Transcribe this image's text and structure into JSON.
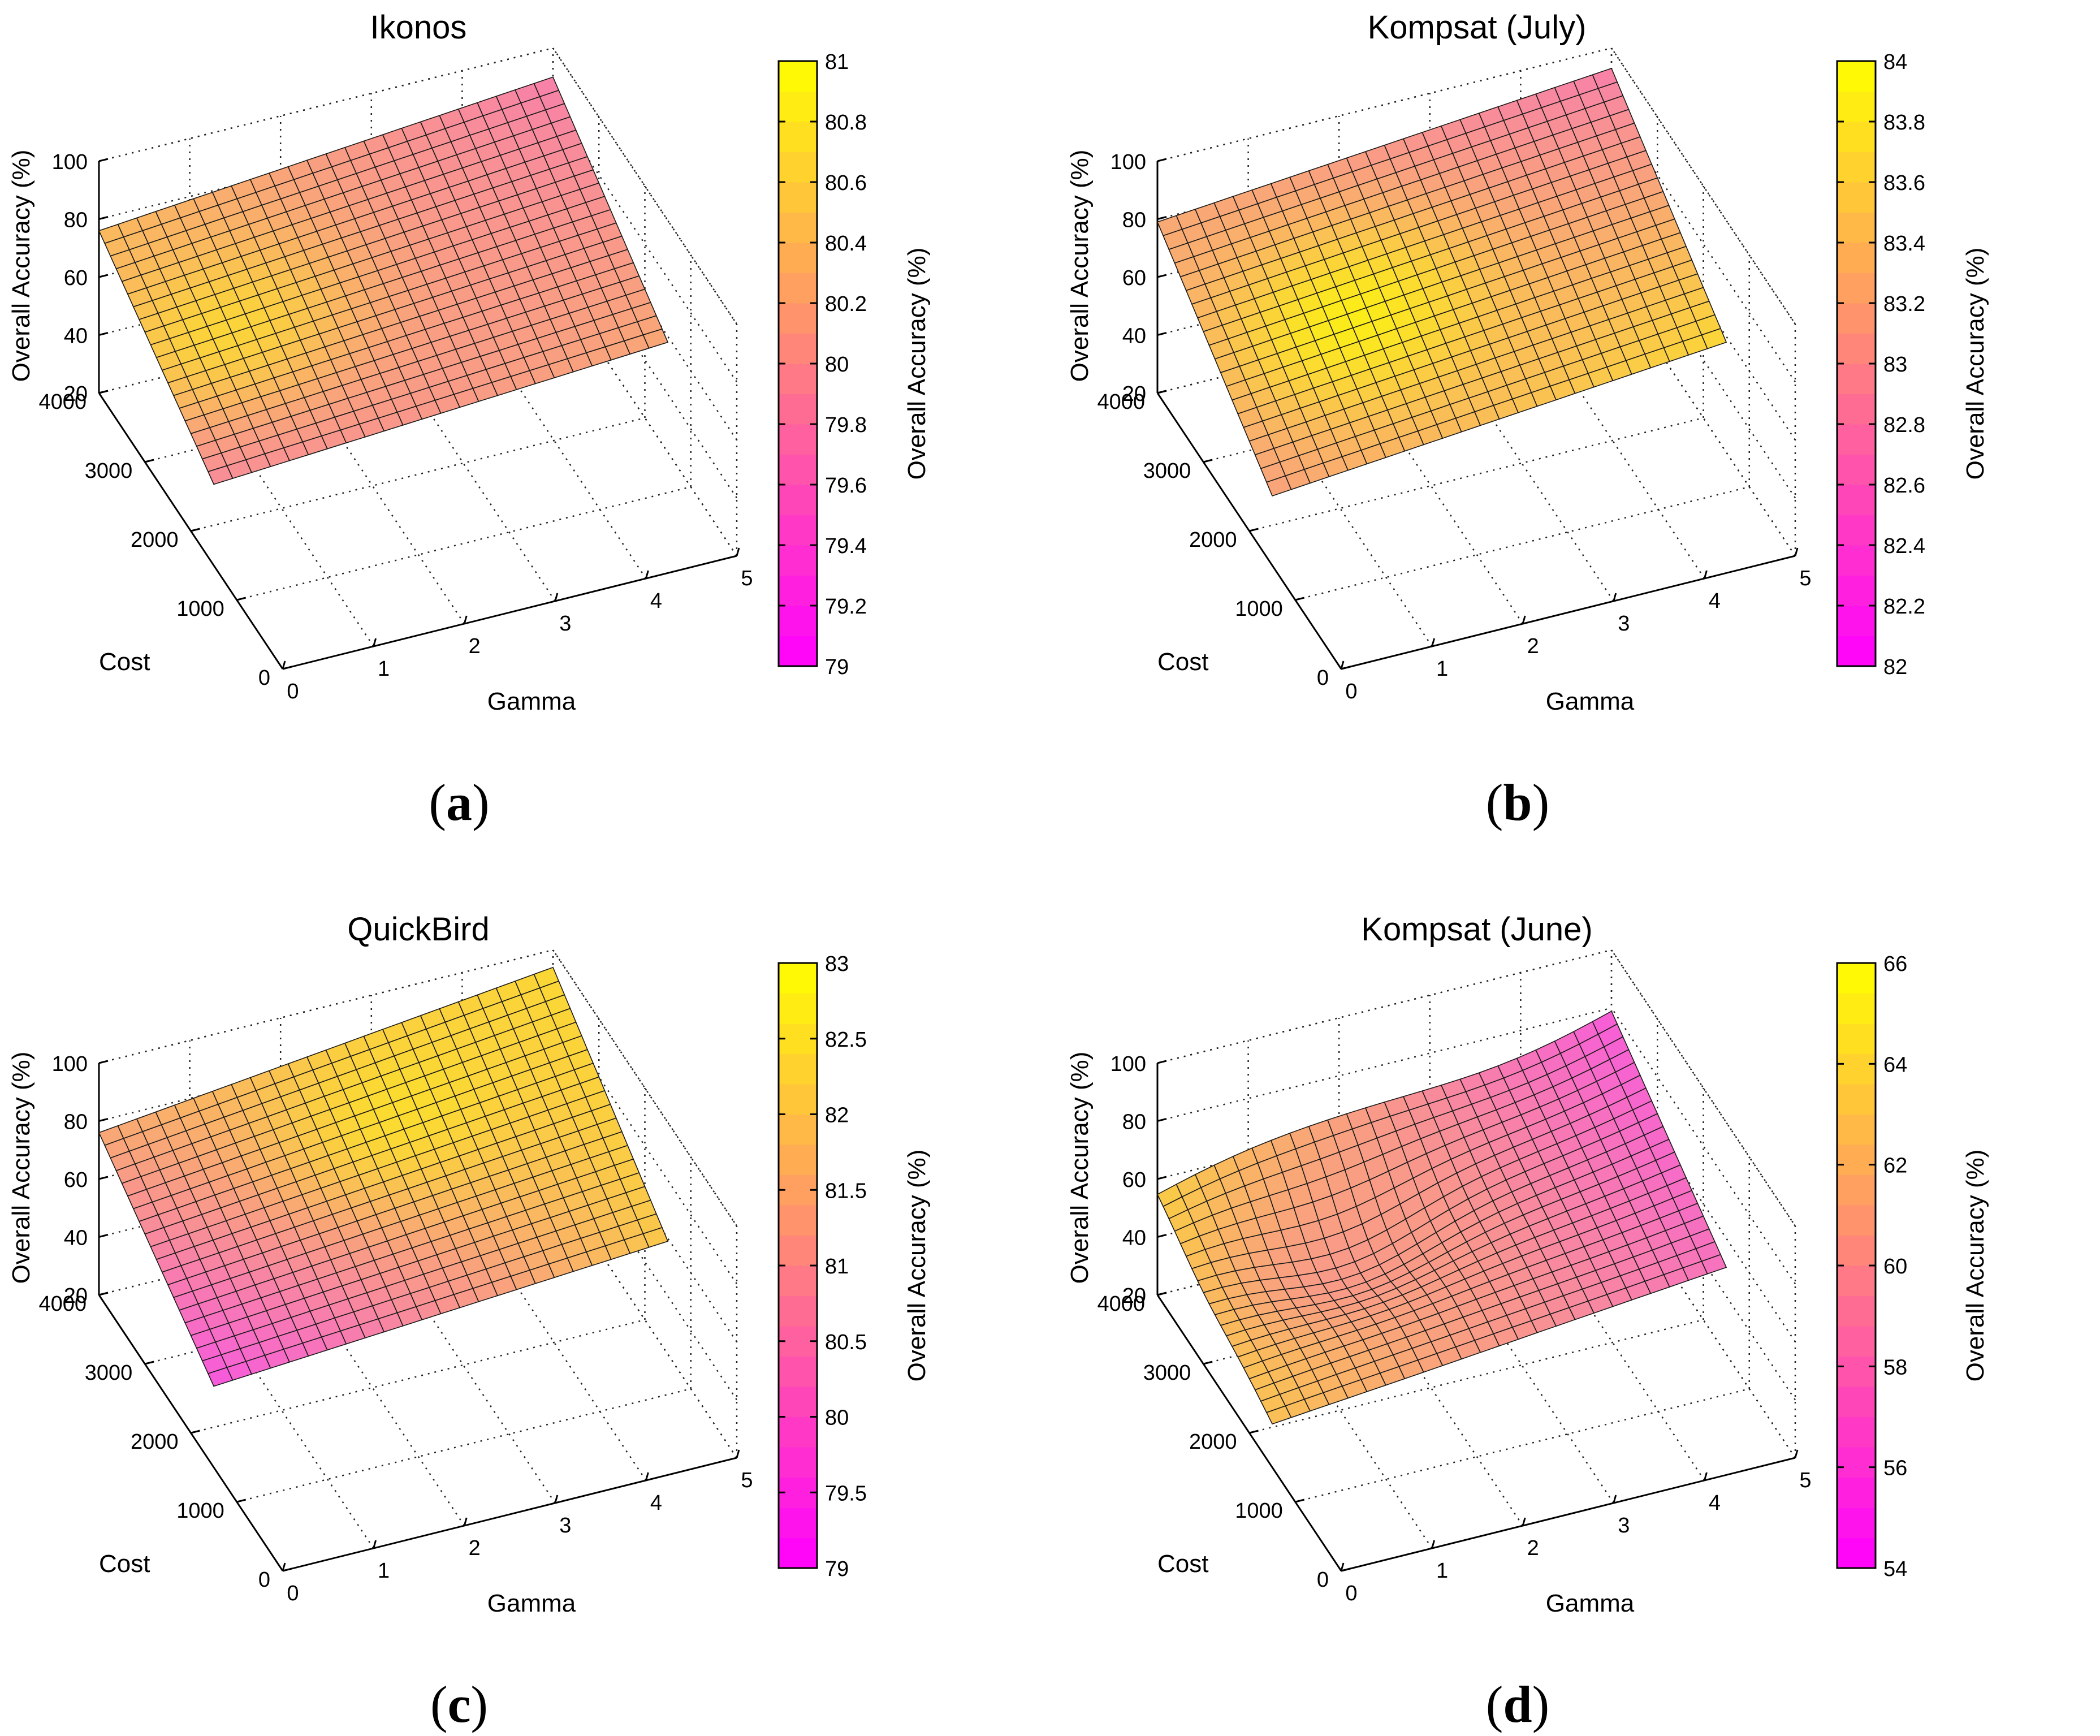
{
  "figure": {
    "panel_letters": [
      "a",
      "b",
      "c",
      "d"
    ]
  },
  "chart_data": [
    {
      "type": "surface3d",
      "title": "Ikonos",
      "panel_label": "a",
      "xlabel": "Gamma",
      "ylabel": "Cost",
      "zlabel": "Overall Accuracy (%)",
      "colorbar_label": "Overall Accuracy (%)",
      "x_ticks": [
        "0",
        "1",
        "2",
        "3",
        "4",
        "5"
      ],
      "y_ticks": [
        "0",
        "1000",
        "2000",
        "3000",
        "4000"
      ],
      "z_ticks": [
        "20",
        "40",
        "60",
        "80",
        "100"
      ],
      "colorbar_ticks": [
        "79",
        "79.2",
        "79.4",
        "79.6",
        "79.8",
        "80",
        "80.2",
        "80.4",
        "80.6",
        "80.8",
        "81"
      ],
      "clim": [
        79,
        81
      ],
      "xlim": [
        0,
        5
      ],
      "ylim": [
        0,
        4000
      ],
      "zlim": [
        20,
        100
      ],
      "surface": {
        "gamma": [
          0,
          5
        ],
        "cost": [
          1500,
          4000
        ],
        "corners": {
          "g0_c4000": 76,
          "g5_c4000": 90,
          "g0_c1500": 48,
          "g5_c1500": 58
        },
        "color": {
          "g0_c4000": 80.3,
          "g5_c4000": 79.6,
          "g0_c1500": 79.7,
          "g5_c1500": 80.1,
          "bump_center": [
            0.8,
            2800
          ],
          "bump_value": 80.65
        }
      }
    },
    {
      "type": "surface3d",
      "title": "Kompsat (July)",
      "panel_label": "b",
      "xlabel": "Gamma",
      "ylabel": "Cost",
      "zlabel": "Overall Accuracy (%)",
      "colorbar_label": "Overall Accuracy (%)",
      "x_ticks": [
        "0",
        "1",
        "2",
        "3",
        "4",
        "5"
      ],
      "y_ticks": [
        "0",
        "1000",
        "2000",
        "3000",
        "4000"
      ],
      "z_ticks": [
        "20",
        "40",
        "60",
        "80",
        "100"
      ],
      "colorbar_ticks": [
        "82",
        "82.2",
        "82.4",
        "82.6",
        "82.8",
        "83",
        "83.2",
        "83.4",
        "83.6",
        "83.8",
        "84"
      ],
      "clim": [
        82,
        84
      ],
      "xlim": [
        0,
        5
      ],
      "ylim": [
        0,
        4000
      ],
      "zlim": [
        20,
        100
      ],
      "surface": {
        "gamma": [
          0,
          5
        ],
        "cost": [
          1500,
          4000
        ],
        "corners": {
          "g0_c4000": 79,
          "g5_c4000": 93,
          "g0_c1500": 44,
          "g5_c1500": 58
        },
        "color": {
          "g0_c4000": 83.1,
          "g5_c4000": 82.6,
          "g0_c1500": 83.0,
          "g5_c1500": 83.7,
          "bump_center": [
            1.5,
            2700
          ],
          "bump_value": 83.95
        }
      }
    },
    {
      "type": "surface3d",
      "title": "QuickBird",
      "panel_label": "c",
      "xlabel": "Gamma",
      "ylabel": "Cost",
      "zlabel": "Overall Accuracy (%)",
      "colorbar_label": "Overall Accuracy (%)",
      "x_ticks": [
        "0",
        "1",
        "2",
        "3",
        "4",
        "5"
      ],
      "y_ticks": [
        "0",
        "1000",
        "2000",
        "3000",
        "4000"
      ],
      "z_ticks": [
        "20",
        "40",
        "60",
        "80",
        "100"
      ],
      "colorbar_ticks": [
        "79",
        "79.5",
        "80",
        "80.5",
        "81",
        "81.5",
        "82",
        "82.5",
        "83"
      ],
      "clim": [
        79,
        83
      ],
      "xlim": [
        0,
        5
      ],
      "ylim": [
        0,
        4000
      ],
      "zlim": [
        20,
        100
      ],
      "surface": {
        "gamma": [
          0,
          5
        ],
        "cost": [
          1500,
          4000
        ],
        "corners": {
          "g0_c4000": 76,
          "g5_c4000": 94,
          "g0_c1500": 48,
          "g5_c1500": 59
        },
        "color": {
          "g0_c4000": 81.2,
          "g5_c4000": 82.4,
          "g0_c1500": 79.2,
          "g5_c1500": 82.0,
          "bump_center": [
            3.0,
            3300
          ],
          "bump_value": 82.5
        }
      }
    },
    {
      "type": "surface3d",
      "title": "Kompsat (June)",
      "panel_label": "d",
      "xlabel": "Gamma",
      "ylabel": "Cost",
      "zlabel": "Overall Accuracy (%)",
      "colorbar_label": "Overall Accuracy (%)",
      "x_ticks": [
        "0",
        "1",
        "2",
        "3",
        "4",
        "5"
      ],
      "y_ticks": [
        "0",
        "1000",
        "2000",
        "3000",
        "4000"
      ],
      "z_ticks": [
        "20",
        "40",
        "60",
        "80",
        "100"
      ],
      "colorbar_ticks": [
        "54",
        "56",
        "58",
        "60",
        "62",
        "64",
        "66"
      ],
      "clim": [
        54,
        66
      ],
      "xlim": [
        0,
        5
      ],
      "ylim": [
        0,
        4000
      ],
      "zlim": [
        20,
        100
      ],
      "surface": {
        "gamma": [
          0,
          5
        ],
        "cost": [
          1500,
          4000
        ],
        "corners": {
          "g0_c4000": 55,
          "g5_c4000": 80,
          "g0_c1500": 35,
          "g5_c1500": 50
        },
        "dip": {
          "center": [
            1.6,
            3000
          ],
          "depth": 14
        },
        "color": {
          "g0_c4000": 63.5,
          "g5_c4000": 55.0,
          "g0_c1500": 62.5,
          "g5_c1500": 56.5,
          "bump_center": [
            1.6,
            2900
          ],
          "bump_value": 59.5
        }
      }
    }
  ]
}
